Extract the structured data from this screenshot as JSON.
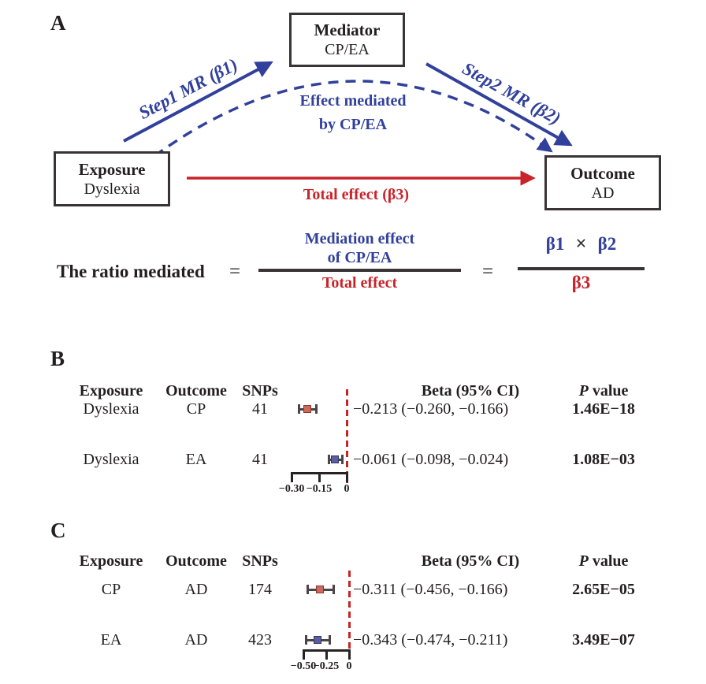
{
  "colors": {
    "blue": "#31409b",
    "red": "#c9232a",
    "box_border": "#3a3335",
    "text": "#231f20",
    "whisker": "#4b4547",
    "axis": "#272324",
    "zero_line": "#c32622"
  },
  "panel_a": {
    "label": "A",
    "boxes": {
      "mediator": {
        "title": "Mediator",
        "subtitle": "CP/EA"
      },
      "exposure": {
        "title": "Exposure",
        "subtitle": "Dyslexia"
      },
      "outcome": {
        "title": "Outcome",
        "subtitle": "AD"
      }
    },
    "arrows": {
      "step1": "Step1 MR (β1)",
      "step2": "Step2 MR (β2)",
      "mediated_line1": "Effect mediated",
      "mediated_line2": "by CP/EA",
      "total": "Total effect (β3)"
    },
    "equation": {
      "lhs": "The ratio mediated",
      "equals": "=",
      "num1_line1": "Mediation effect",
      "num1_line2": "of CP/EA",
      "den1": "Total effect",
      "beta1": "β1",
      "times": "×",
      "beta2": "β2",
      "den2": "β3"
    }
  },
  "chart_data": [
    {
      "panel_label": "B",
      "type": "scatter",
      "subtype": "forest-plot",
      "columns": [
        "Exposure",
        "Outcome",
        "SNPs",
        "Beta (95% CI)"
      ],
      "p_header": {
        "italic": "P",
        "rest": "value"
      },
      "rows": [
        {
          "exposure": "Dyslexia",
          "outcome": "CP",
          "snps": "41",
          "beta": -0.213,
          "ci": [
            -0.26,
            -0.166
          ],
          "beta_ci_text": "−0.213 (−0.260, −0.166)",
          "p_value": "1.46E−18",
          "marker_fill": "#ca6a5e",
          "marker_edge": "#8e352b"
        },
        {
          "exposure": "Dyslexia",
          "outcome": "EA",
          "snps": "41",
          "beta": -0.061,
          "ci": [
            -0.098,
            -0.024
          ],
          "beta_ci_text": "−0.061 (−0.098, −0.024)",
          "p_value": "1.08E−03",
          "marker_fill": "#5a5e9e",
          "marker_edge": "#33356d"
        }
      ],
      "axis": {
        "ticks": [
          -0.3,
          -0.15,
          0
        ],
        "tick_labels": [
          "−0.30",
          "−0.15",
          "0"
        ],
        "range": [
          -0.3,
          0
        ],
        "zero_line": true
      }
    },
    {
      "panel_label": "C",
      "type": "scatter",
      "subtype": "forest-plot",
      "columns": [
        "Exposure",
        "Outcome",
        "SNPs",
        "Beta (95% CI)"
      ],
      "p_header": {
        "italic": "P",
        "rest": "value"
      },
      "rows": [
        {
          "exposure": "CP",
          "outcome": "AD",
          "snps": "174",
          "beta": -0.311,
          "ci": [
            -0.456,
            -0.166
          ],
          "beta_ci_text": "−0.311 (−0.456, −0.166)",
          "p_value": "2.65E−05",
          "marker_fill": "#ca6a5e",
          "marker_edge": "#8e352b"
        },
        {
          "exposure": "EA",
          "outcome": "AD",
          "snps": "423",
          "beta": -0.343,
          "ci": [
            -0.474,
            -0.211
          ],
          "beta_ci_text": "−0.343 (−0.474, −0.211)",
          "p_value": "3.49E−07",
          "marker_fill": "#5a5e9e",
          "marker_edge": "#33356d"
        }
      ],
      "axis": {
        "ticks": [
          -0.5,
          -0.25,
          0
        ],
        "tick_labels": [
          "−0.50",
          "−0.25",
          "0"
        ],
        "range": [
          -0.5,
          0
        ],
        "zero_line": true
      }
    }
  ]
}
